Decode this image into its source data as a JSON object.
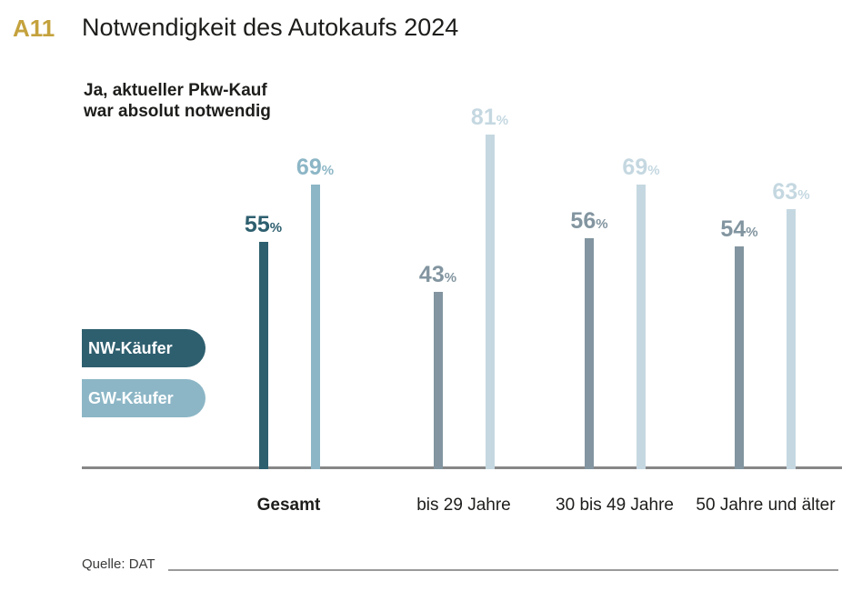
{
  "header": {
    "tag": "A11",
    "tag_color": "#C4A23D",
    "title": "Notwendigkeit des Autokaufs 2024"
  },
  "subtitle": {
    "line1": "Ja, aktueller Pkw-Kauf",
    "line2": "war absolut notwendig"
  },
  "legend": [
    {
      "label": "NW-Käufer",
      "color": "#2E5F6F"
    },
    {
      "label": "GW-Käufer",
      "color": "#8CB6C6"
    }
  ],
  "source": {
    "label": "Quelle: DAT"
  },
  "chart_data": {
    "type": "bar",
    "title": "Notwendigkeit des Autokaufs 2024",
    "subtitle": "Ja, aktueller Pkw-Kauf war absolut notwendig",
    "categories": [
      "Gesamt",
      "bis 29 Jahre",
      "30 bis 49 Jahre",
      "50 Jahre und älter"
    ],
    "series": [
      {
        "name": "NW-Käufer",
        "values": [
          55,
          43,
          56,
          54
        ]
      },
      {
        "name": "GW-Käufer",
        "values": [
          69,
          81,
          69,
          63
        ]
      }
    ],
    "unit": "%",
    "ylim": [
      0,
      100
    ],
    "grid": false,
    "legend_position": "left",
    "emphasized_category": "Gesamt",
    "colors": {
      "nw_main": "#2E5F6F",
      "gw_main": "#8CB6C6",
      "nw_muted": "#8295A0",
      "gw_muted": "#C5D8E1"
    },
    "source": "Quelle: DAT"
  }
}
